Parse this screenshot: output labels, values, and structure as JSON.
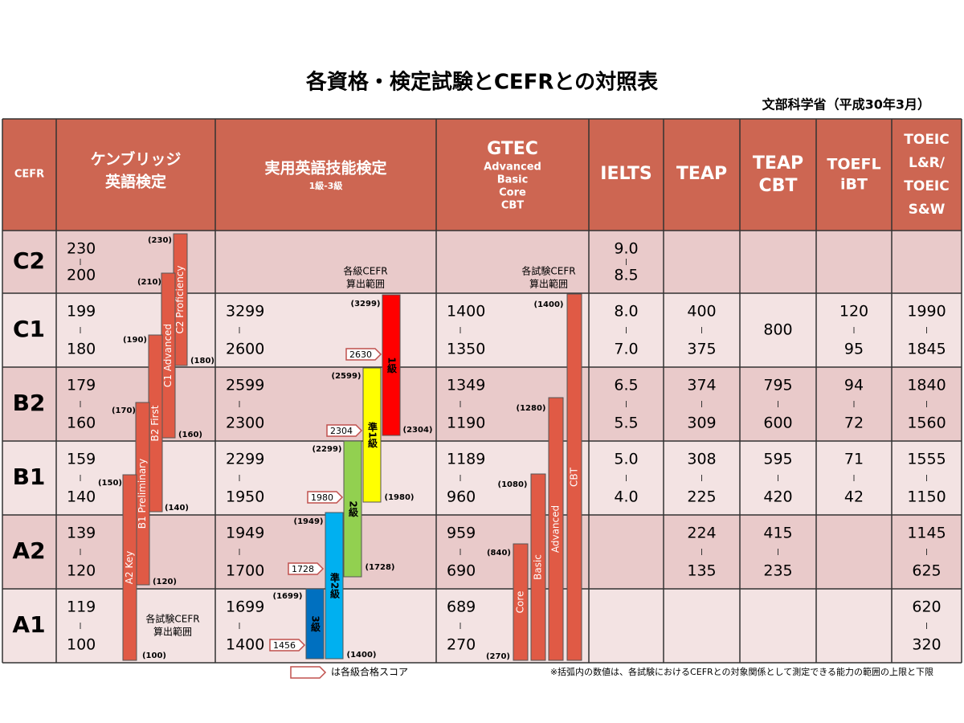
{
  "header": {
    "title": "各資格・検定試験とCEFRとの対照表",
    "source": "文部科学省（平成30年3月）"
  },
  "table": {
    "columns": [
      {
        "title": [
          "CEFR"
        ],
        "subtitle": []
      },
      {
        "title": [
          "ケンブリッジ",
          "英語検定"
        ],
        "subtitle": []
      },
      {
        "title": [
          "実用英語技能検定"
        ],
        "subtitle": [
          "1級-3級"
        ]
      },
      {
        "title": [
          "GTEC"
        ],
        "subtitle": [
          "Advanced",
          "Basic",
          "Core",
          "CBT"
        ]
      },
      {
        "title": [
          "IELTS"
        ],
        "subtitle": []
      },
      {
        "title": [
          "TEAP"
        ],
        "subtitle": []
      },
      {
        "title": [
          "TEAP",
          "CBT"
        ],
        "subtitle": []
      },
      {
        "title": [
          "TOEFL",
          "iBT"
        ],
        "subtitle": []
      },
      {
        "title": [
          "TOEIC",
          "L&R/",
          "TOEIC",
          "S&W"
        ],
        "subtitle": []
      }
    ],
    "rows": [
      {
        "level": "C2",
        "cells": [
          {
            "high": "230",
            "low": "200"
          },
          null,
          null,
          {
            "high": "9.0",
            "low": "8.5"
          },
          null,
          null,
          null,
          null
        ]
      },
      {
        "level": "C1",
        "cells": [
          {
            "high": "199",
            "low": "180"
          },
          {
            "high": "3299",
            "low": "2600"
          },
          {
            "high": "1400",
            "low": "1350"
          },
          {
            "high": "8.0",
            "low": "7.0"
          },
          {
            "high": "400",
            "low": "375"
          },
          {
            "value": "800"
          },
          {
            "high": "120",
            "low": "95"
          },
          {
            "high": "1990",
            "low": "1845"
          }
        ]
      },
      {
        "level": "B2",
        "cells": [
          {
            "high": "179",
            "low": "160"
          },
          {
            "high": "2599",
            "low": "2300"
          },
          {
            "high": "1349",
            "low": "1190"
          },
          {
            "high": "6.5",
            "low": "5.5"
          },
          {
            "high": "374",
            "low": "309"
          },
          {
            "high": "795",
            "low": "600"
          },
          {
            "high": "94",
            "low": "72"
          },
          {
            "high": "1840",
            "low": "1560"
          }
        ]
      },
      {
        "level": "B1",
        "cells": [
          {
            "high": "159",
            "low": "140"
          },
          {
            "high": "2299",
            "low": "1950"
          },
          {
            "high": "1189",
            "low": "960"
          },
          {
            "high": "5.0",
            "low": "4.0"
          },
          {
            "high": "308",
            "low": "225"
          },
          {
            "high": "595",
            "low": "420"
          },
          {
            "high": "71",
            "low": "42"
          },
          {
            "high": "1555",
            "low": "1150"
          }
        ]
      },
      {
        "level": "A2",
        "cells": [
          {
            "high": "139",
            "low": "120"
          },
          {
            "high": "1949",
            "low": "1700"
          },
          {
            "high": "959",
            "low": "690"
          },
          null,
          {
            "high": "224",
            "low": "135"
          },
          {
            "high": "415",
            "low": "235"
          },
          null,
          {
            "high": "1145",
            "low": "625"
          }
        ]
      },
      {
        "level": "A1",
        "cells": [
          {
            "high": "119",
            "low": "100"
          },
          {
            "high": "1699",
            "low": "1400"
          },
          {
            "high": "689",
            "low": "270"
          },
          null,
          null,
          null,
          null,
          {
            "high": "620",
            "low": "320"
          }
        ]
      }
    ]
  },
  "cambridge": {
    "note": [
      "各試験CEFR",
      "算出範囲"
    ],
    "bars": [
      {
        "label": "C2 Proficiency",
        "top": "(230)",
        "bottom": "(180)"
      },
      {
        "label": "C1 Advanced",
        "top": "(210)",
        "bottom": "(160)"
      },
      {
        "label": "B2 First",
        "top": "(190)",
        "bottom": "(140)"
      },
      {
        "label": "B1 Preliminary",
        "top": "(170)",
        "bottom": "(120)"
      },
      {
        "label": "A2 Key",
        "top": "(150)",
        "bottom": "(100)"
      }
    ]
  },
  "eiken": {
    "note": [
      "各級CEFR",
      "算出範囲"
    ],
    "bars": [
      {
        "label": "1級",
        "top": "(3299)",
        "bottom": "(2304)",
        "pass": "2630"
      },
      {
        "label": "準1級",
        "top": "(2599)",
        "bottom": "(1980)",
        "pass": "2304"
      },
      {
        "label": "2級",
        "top": "(2299)",
        "bottom": "(1728)",
        "pass": "1980"
      },
      {
        "label": "準2級",
        "top": "(1949)",
        "bottom": "(1400)",
        "pass": "1728"
      },
      {
        "label": "3級",
        "top": "(1699)",
        "bottom": null,
        "pass": "1456"
      }
    ]
  },
  "gtec": {
    "note": [
      "各試験CEFR",
      "算出範囲"
    ],
    "bars": [
      {
        "label": "Core",
        "top": "(840)",
        "bottom": "(270)"
      },
      {
        "label": "Basic",
        "top": "(1080)",
        "bottom": null
      },
      {
        "label": "Advanced",
        "top": "(1280)",
        "bottom": null
      },
      {
        "label": "CBT",
        "top": "(1400)",
        "bottom": null
      }
    ]
  },
  "footer": {
    "legend": "は各級合格スコア",
    "note": "※括弧内の数値は、各試験におけるCEFRとの対象関係として測定できる能力の範囲の上限と下限"
  }
}
